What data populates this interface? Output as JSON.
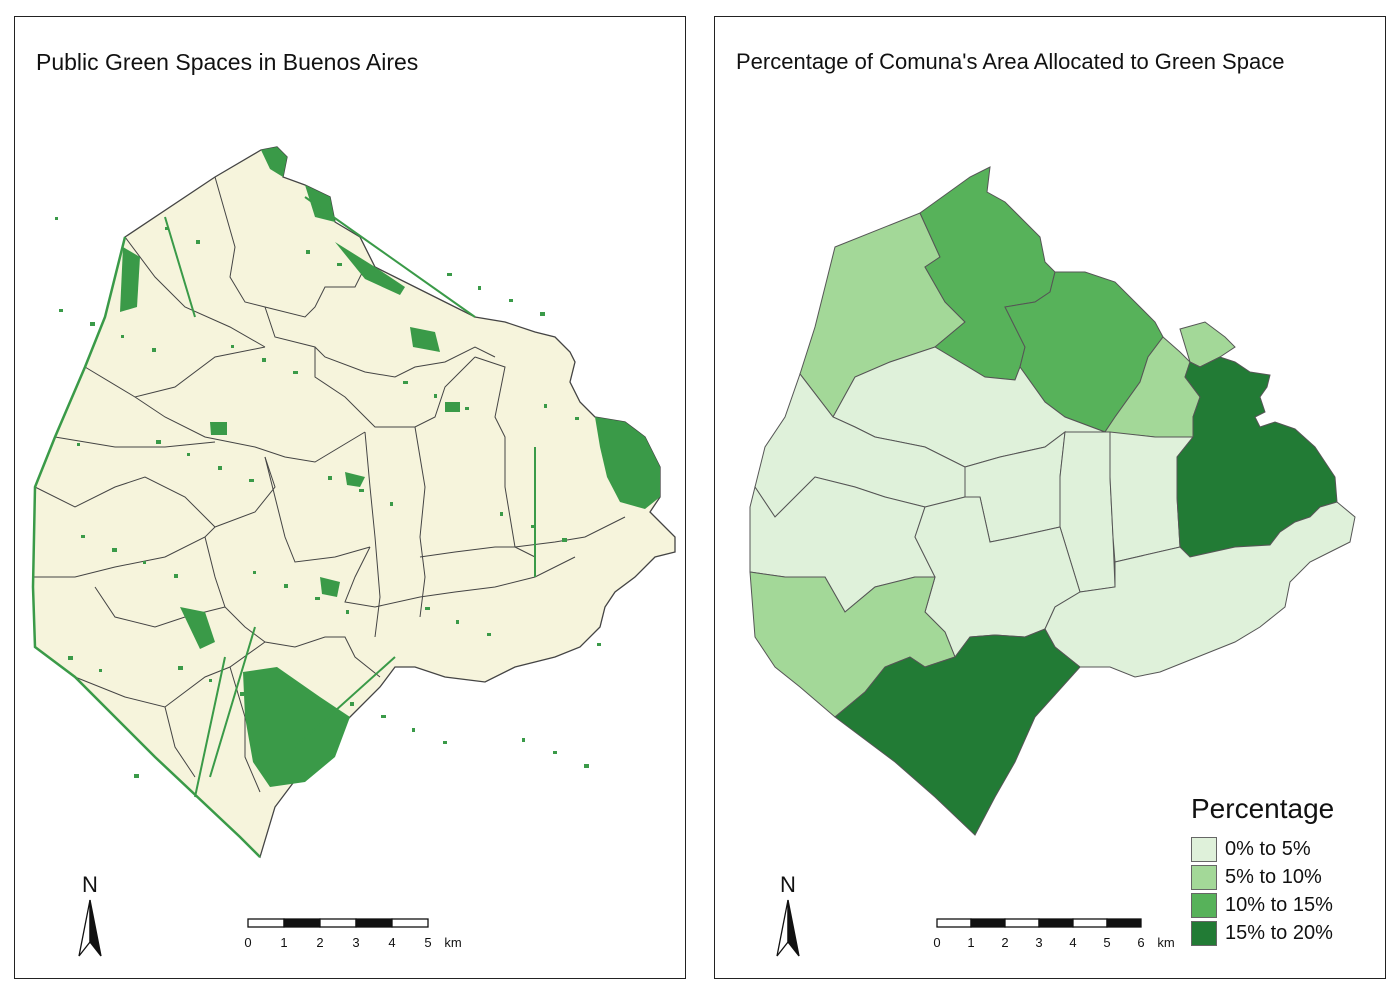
{
  "left_map": {
    "title": "Public Green Spaces in Buenos Aires",
    "north_label": "N",
    "scale": {
      "ticks": [
        "0",
        "1",
        "2",
        "3",
        "4",
        "5"
      ],
      "unit": "km"
    },
    "colors": {
      "land": "#f6f4dc",
      "border": "#444444",
      "green_space": "#3a9a48"
    }
  },
  "right_map": {
    "title": "Percentage of Comuna's Area Allocated to Green Space",
    "north_label": "N",
    "scale": {
      "ticks": [
        "0",
        "1",
        "2",
        "3",
        "4",
        "5",
        "6"
      ],
      "unit": "km"
    },
    "legend": {
      "title": "Percentage",
      "items": [
        {
          "label": "0% to 5%",
          "color": "#dff1da"
        },
        {
          "label": "5% to 10%",
          "color": "#a3d898"
        },
        {
          "label": "10% to 15%",
          "color": "#57b25a"
        },
        {
          "label": "15% to 20%",
          "color": "#227b35"
        }
      ]
    }
  }
}
